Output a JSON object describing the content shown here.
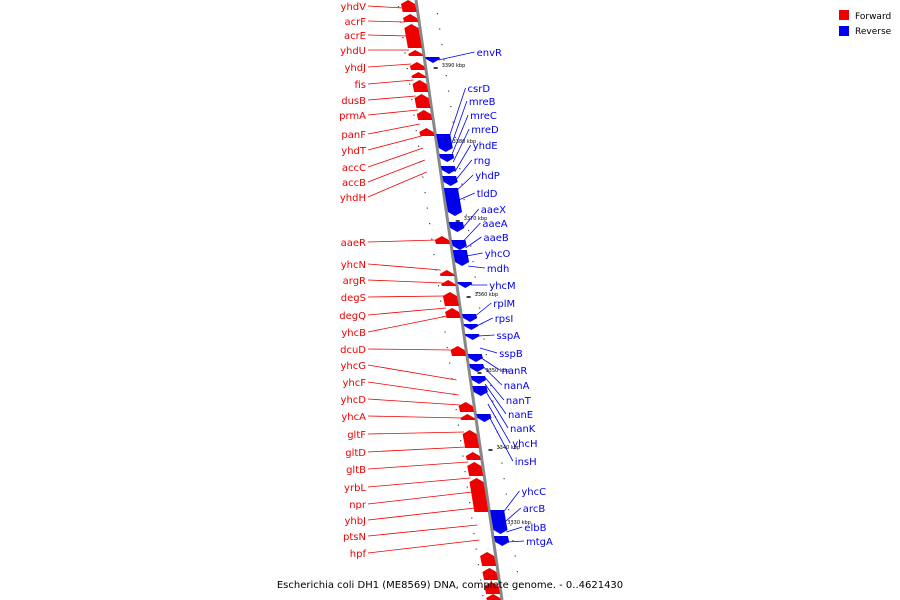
{
  "colors": {
    "forward": "#ee0000",
    "reverse": "#0000ee",
    "backbone": "#888888"
  },
  "legend": [
    {
      "label": "Forward",
      "color": "#ee0000"
    },
    {
      "label": "Reverse",
      "color": "#0000ee"
    }
  ],
  "caption": "Escherichia coli DH1 (ME8569) DNA, complete genome. - 0..4621430",
  "kbp_marks": [
    "3390 kbp",
    "3380 kbp",
    "3370 kbp",
    "3360 kbp",
    "3350 kbp",
    "3340 kbp",
    "3330 kbp"
  ],
  "forward_genes": [
    "yhdV",
    "acrF",
    "acrE",
    "yhdU",
    "yhdJ",
    "fis",
    "dusB",
    "prmA",
    "panF",
    "yhdT",
    "accC",
    "accB",
    "yhdH",
    "aaeR",
    "yhcN",
    "argR",
    "degS",
    "degQ",
    "yhcB",
    "dcuD",
    "yhcG",
    "yhcF",
    "yhcD",
    "yhcA",
    "gltF",
    "gltD",
    "gltB",
    "yrbL",
    "npr",
    "yhbJ",
    "ptsN",
    "hpf"
  ],
  "reverse_genes": [
    "envR",
    "csrD",
    "mreB",
    "mreC",
    "mreD",
    "yhdE",
    "rng",
    "yhdP",
    "tldD",
    "aaeX",
    "aaeA",
    "aaeB",
    "yhcO",
    "mdh",
    "yhcM",
    "rplM",
    "rpsI",
    "sspA",
    "sspB",
    "nanR",
    "nanA",
    "nanT",
    "nanE",
    "nanK",
    "yhcH",
    "insH",
    "yhcC",
    "arcB",
    "elbB",
    "mtgA"
  ]
}
